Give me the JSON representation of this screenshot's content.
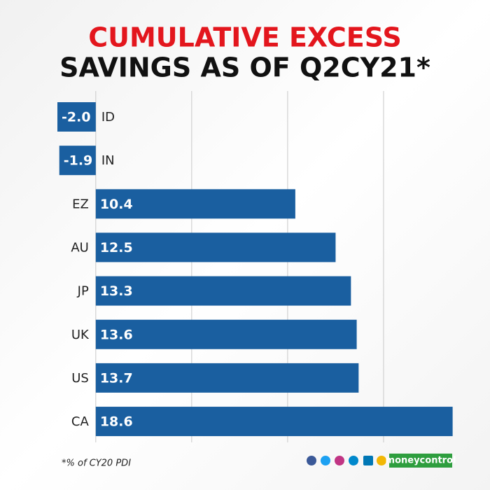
{
  "chart_data": {
    "type": "barh",
    "title": [
      "CUMULATIVE EXCESS",
      "SAVINGS AS OF Q2CY21*"
    ],
    "categories": [
      "ID",
      "IN",
      "EZ",
      "AU",
      "JP",
      "UK",
      "US",
      "CA"
    ],
    "values": [
      -2.0,
      -1.9,
      10.4,
      12.5,
      13.3,
      13.6,
      13.7,
      18.6
    ],
    "value_labels": [
      "-2.0",
      "-1.9",
      "10.4",
      "12.5",
      "13.3",
      "13.6",
      "13.7",
      "18.6"
    ],
    "color": "#1a5fa0",
    "xlim": [
      -2,
      20
    ],
    "xticks": [
      0,
      5,
      10,
      15
    ],
    "grid": true,
    "footnote": "*% of CY20 PDI",
    "brand": "moneycontrol"
  }
}
